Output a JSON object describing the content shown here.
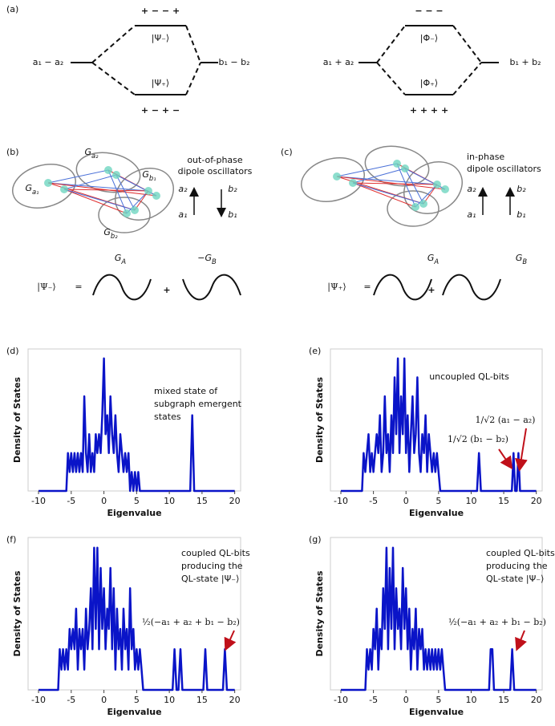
{
  "panel_a": {
    "label": "(a)",
    "left": {
      "top_signs": "+ − − +",
      "top_state": "|Ψ₋⟩",
      "left_level": "a₁ − a₂",
      "right_level": "b₁ − b₂",
      "bottom_state": "|Ψ₊⟩",
      "bottom_signs": "+ − + −"
    },
    "right": {
      "top_signs": "− − −",
      "top_state": "|Φ₋⟩",
      "left_level": "a₁ + a₂",
      "right_level": "b₁ + b₂",
      "bottom_state": "|Φ₊⟩",
      "bottom_signs": "+ + + +"
    }
  },
  "panel_b": {
    "label": "(b)",
    "caption": [
      "out-of-phase",
      "dipole oscillators"
    ],
    "graph_labels": [
      {
        "base": "G",
        "sub": "a₂"
      },
      {
        "base": "G",
        "sub": "b₁"
      },
      {
        "base": "G",
        "sub": "a₁"
      },
      {
        "base": "G",
        "sub": "b₂"
      }
    ],
    "arrow_labels": [
      "a₂",
      "a₁",
      "b₂",
      "b₁"
    ],
    "equation": {
      "ket": "|Ψ₋⟩",
      "equals": "=",
      "first": {
        "base": "G",
        "sub": "A"
      },
      "second": {
        "base": "−G",
        "sub": "B"
      },
      "plus": "+"
    }
  },
  "panel_c": {
    "label": "(c)",
    "caption": [
      "in-phase",
      "dipole oscillators"
    ],
    "arrow_labels": [
      "a₂",
      "a₁",
      "b₂",
      "b₁"
    ],
    "equation": {
      "ket": "|Ψ₊⟩",
      "equals": "=",
      "first": {
        "base": "G",
        "sub": "A"
      },
      "second": {
        "base": "G",
        "sub": "B"
      },
      "plus": "+"
    }
  },
  "chart_data": [
    {
      "type": "line",
      "label": "(d)",
      "xlabel": "Eigenvalue",
      "ylabel": "Density of States",
      "color": "#0a14c8",
      "xlim": [
        -11.6,
        20.9
      ],
      "ylim": [
        0,
        7.5
      ],
      "xticks": [
        -10,
        -5,
        0,
        5,
        10,
        15,
        20
      ],
      "annotations": [
        "mixed state of",
        "subgraph emergent",
        "states"
      ],
      "x": [
        -10,
        -5.75,
        -5.5,
        -5.25,
        -5,
        -4.75,
        -4.5,
        -4.25,
        -4,
        -3.75,
        -3.5,
        -3.25,
        -3,
        -2.75,
        -2.5,
        -2.25,
        -2,
        -1.75,
        -1.5,
        -1.25,
        -1,
        -0.75,
        -0.5,
        -0.25,
        0,
        0.25,
        0.5,
        0.75,
        1,
        1.25,
        1.5,
        1.75,
        2,
        2.25,
        2.5,
        2.75,
        3,
        3.25,
        3.5,
        3.75,
        4,
        4.25,
        4.5,
        4.75,
        5,
        5.25,
        5.5,
        13.2,
        13.5,
        13.8,
        20
      ],
      "values": [
        0,
        0,
        2,
        1,
        2,
        1,
        2,
        1,
        2,
        1,
        2,
        1,
        5,
        2,
        1,
        3,
        1,
        2,
        1,
        3,
        2,
        3,
        2,
        4,
        7,
        3,
        4,
        2,
        5,
        3,
        2,
        4,
        2,
        1,
        3,
        2,
        1,
        2,
        1,
        2,
        0,
        1,
        0,
        1,
        0,
        1,
        0,
        0,
        4,
        0,
        0
      ]
    },
    {
      "type": "line",
      "label": "(e)",
      "xlabel": "Eigenvalue",
      "ylabel": "Density of States",
      "color": "#0a14c8",
      "xlim": [
        -11.6,
        20.9
      ],
      "ylim": [
        0,
        7.5
      ],
      "xticks": [
        -10,
        -5,
        0,
        5,
        10,
        15,
        20
      ],
      "annotations": [
        "uncoupled QL-bits",
        "1/√2 (a₁ − a₂)",
        "1/√2 (b₁ − b₂)"
      ],
      "x": [
        -10,
        -6.75,
        -6.5,
        -6.25,
        -6,
        -5.75,
        -5.5,
        -5.25,
        -5,
        -4.75,
        -4.5,
        -4.25,
        -4,
        -3.75,
        -3.5,
        -3.25,
        -3,
        -2.75,
        -2.5,
        -2.25,
        -2,
        -1.75,
        -1.5,
        -1.25,
        -1,
        -0.75,
        -0.5,
        -0.25,
        0,
        0.25,
        0.5,
        0.75,
        1,
        1.25,
        1.5,
        1.75,
        2,
        2.25,
        2.5,
        2.75,
        3,
        3.25,
        3.5,
        3.75,
        4,
        4.25,
        4.5,
        4.75,
        5,
        5.25,
        10.9,
        11.2,
        11.5,
        16.25,
        16.5,
        16.75,
        17,
        17.25,
        17.5,
        20
      ],
      "values": [
        0,
        0,
        2,
        1,
        2,
        3,
        1,
        2,
        1,
        2,
        3,
        2,
        4,
        1,
        2,
        5,
        2,
        3,
        1,
        4,
        2,
        6,
        3,
        7,
        2,
        5,
        3,
        7,
        2,
        4,
        1,
        3,
        5,
        2,
        3,
        6,
        2,
        1,
        3,
        2,
        4,
        1,
        3,
        2,
        1,
        2,
        1,
        2,
        1,
        0,
        0,
        2,
        0,
        0,
        2,
        0,
        0,
        2,
        0,
        0
      ]
    },
    {
      "type": "line",
      "label": "(f)",
      "xlabel": "Eigenvalue",
      "ylabel": "Density of States",
      "color": "#0a14c8",
      "xlim": [
        -11.6,
        20.9
      ],
      "ylim": [
        0,
        7.5
      ],
      "xticks": [
        -10,
        -5,
        0,
        5,
        10,
        15,
        20
      ],
      "annotations": [
        "coupled QL-bits",
        "producing the",
        "QL-state |Ψ₋⟩",
        "½(−a₁ + a₂ + b₁ − b₂)"
      ],
      "x": [
        -10,
        -7,
        -6.75,
        -6.5,
        -6.25,
        -6,
        -5.75,
        -5.5,
        -5.25,
        -5,
        -4.75,
        -4.5,
        -4.25,
        -4,
        -3.75,
        -3.5,
        -3.25,
        -3,
        -2.75,
        -2.5,
        -2.25,
        -2,
        -1.75,
        -1.5,
        -1.25,
        -1,
        -0.75,
        -0.5,
        -0.25,
        0,
        0.25,
        0.5,
        0.75,
        1,
        1.25,
        1.5,
        1.75,
        2,
        2.25,
        2.5,
        2.75,
        3,
        3.25,
        3.5,
        3.75,
        4,
        4.25,
        4.5,
        4.75,
        5,
        5.25,
        5.5,
        5.75,
        6,
        10.5,
        10.8,
        11.1,
        11.4,
        11.7,
        12,
        15.2,
        15.5,
        15.8,
        18.2,
        18.5,
        18.8,
        20
      ],
      "values": [
        0,
        0,
        2,
        1,
        2,
        1,
        2,
        1,
        3,
        2,
        3,
        2,
        4,
        1,
        3,
        2,
        3,
        1,
        4,
        2,
        3,
        5,
        2,
        7,
        3,
        7,
        2,
        6,
        3,
        5,
        2,
        4,
        3,
        6,
        2,
        5,
        1,
        4,
        2,
        3,
        1,
        4,
        2,
        3,
        1,
        5,
        2,
        3,
        1,
        2,
        1,
        2,
        1,
        0,
        0,
        2,
        0,
        0,
        2,
        0,
        0,
        2,
        0,
        0,
        2,
        0,
        0
      ]
    },
    {
      "type": "line",
      "label": "(g)",
      "xlabel": "Eigenvalue",
      "ylabel": "Density of States",
      "color": "#0a14c8",
      "xlim": [
        -11.6,
        20.9
      ],
      "ylim": [
        0,
        7.5
      ],
      "xticks": [
        -10,
        -5,
        0,
        5,
        10,
        15,
        20
      ],
      "annotations": [
        "coupled QL-bits",
        "producing the",
        "QL-state |Ψ₋⟩",
        "½(−a₁ + a₂ + b₁ − b₂)"
      ],
      "x": [
        -10,
        -6.25,
        -6,
        -5.75,
        -5.5,
        -5.25,
        -5,
        -4.75,
        -4.5,
        -4.25,
        -4,
        -3.75,
        -3.5,
        -3.25,
        -3,
        -2.75,
        -2.5,
        -2.25,
        -2,
        -1.75,
        -1.5,
        -1.25,
        -1,
        -0.75,
        -0.5,
        -0.25,
        0,
        0.25,
        0.5,
        0.75,
        1,
        1.25,
        1.5,
        1.75,
        2,
        2.25,
        2.5,
        2.75,
        3,
        3.25,
        3.5,
        3.75,
        4,
        4.25,
        4.5,
        4.75,
        5,
        5.25,
        5.5,
        5.75,
        6,
        12.75,
        13,
        13.25,
        13.5,
        16,
        16.3,
        16.6,
        20
      ],
      "values": [
        0,
        0,
        2,
        1,
        2,
        1,
        3,
        2,
        4,
        1,
        3,
        2,
        5,
        3,
        7,
        2,
        6,
        3,
        7,
        2,
        5,
        3,
        4,
        2,
        6,
        3,
        5,
        2,
        4,
        1,
        3,
        2,
        4,
        1,
        3,
        2,
        3,
        1,
        2,
        1,
        2,
        1,
        2,
        1,
        2,
        1,
        2,
        1,
        2,
        1,
        0,
        0,
        2,
        2,
        0,
        0,
        2,
        0,
        0
      ]
    }
  ]
}
